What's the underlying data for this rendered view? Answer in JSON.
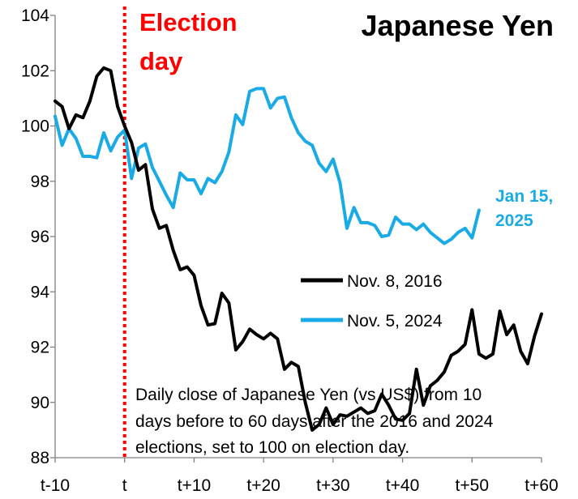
{
  "chart_data": {
    "type": "line",
    "title": "Japanese Yen",
    "event_label_line1": "Election",
    "event_label_line2": "day",
    "event_x": 0,
    "annotation": {
      "lines": [
        "Daily close of Japanese Yen (vs US$) from 10",
        "days before to 60 days after the 2016 and 2024",
        "elections, set to 100 on election day."
      ]
    },
    "end_label": {
      "line1": "Jan 15,",
      "line2": "2025"
    },
    "xlim": [
      -10,
      60
    ],
    "ylim": [
      88,
      104
    ],
    "x_ticks": [
      -10,
      0,
      10,
      20,
      30,
      40,
      50,
      60
    ],
    "x_tick_labels": [
      "t-10",
      "t",
      "t+10",
      "t+20",
      "t+30",
      "t+40",
      "t+50",
      "t+60"
    ],
    "y_ticks": [
      88,
      90,
      92,
      94,
      96,
      98,
      100,
      102,
      104
    ],
    "y_tick_labels": [
      "88",
      "90",
      "92",
      "94",
      "96",
      "98",
      "100",
      "102",
      "104"
    ],
    "grid": false,
    "legend_position": "center-right",
    "colors": {
      "series_2016": "#000000",
      "series_2024": "#1aabe6",
      "event_line": "#ff0000"
    },
    "series": [
      {
        "name": "Nov. 8, 2016",
        "color": "#000000",
        "points": [
          [
            -10,
            100.9
          ],
          [
            -9,
            100.7
          ],
          [
            -8,
            99.9
          ],
          [
            -7,
            100.4
          ],
          [
            -6,
            100.3
          ],
          [
            -5,
            100.9
          ],
          [
            -4,
            101.8
          ],
          [
            -3,
            102.1
          ],
          [
            -2,
            102.0
          ],
          [
            -1,
            100.7
          ],
          [
            0,
            100.0
          ],
          [
            1,
            99.4
          ],
          [
            2,
            98.4
          ],
          [
            3,
            98.6
          ],
          [
            4,
            97.0
          ],
          [
            5,
            96.3
          ],
          [
            6,
            96.4
          ],
          [
            7,
            95.5
          ],
          [
            8,
            94.8
          ],
          [
            9,
            94.9
          ],
          [
            10,
            94.6
          ],
          [
            11,
            93.5
          ],
          [
            12,
            92.8
          ],
          [
            13,
            92.85
          ],
          [
            14,
            93.95
          ],
          [
            15,
            93.6
          ],
          [
            16,
            91.9
          ],
          [
            17,
            92.2
          ],
          [
            18,
            92.65
          ],
          [
            19,
            92.45
          ],
          [
            20,
            92.3
          ],
          [
            21,
            92.5
          ],
          [
            22,
            92.3
          ],
          [
            23,
            91.2
          ],
          [
            24,
            91.45
          ],
          [
            25,
            91.3
          ],
          [
            26,
            90.0
          ],
          [
            27,
            89.0
          ],
          [
            28,
            89.2
          ],
          [
            29,
            89.8
          ],
          [
            30,
            89.2
          ],
          [
            31,
            89.55
          ],
          [
            32,
            89.5
          ],
          [
            33,
            89.65
          ],
          [
            34,
            89.8
          ],
          [
            35,
            89.6
          ],
          [
            36,
            89.7
          ],
          [
            37,
            90.3
          ],
          [
            38,
            89.9
          ],
          [
            39,
            89.4
          ],
          [
            40,
            89.35
          ],
          [
            41,
            89.6
          ],
          [
            42,
            91.2
          ],
          [
            43,
            89.9
          ],
          [
            44,
            90.6
          ],
          [
            45,
            90.8
          ],
          [
            46,
            91.1
          ],
          [
            47,
            91.7
          ],
          [
            48,
            91.85
          ],
          [
            49,
            92.1
          ],
          [
            50,
            93.35
          ],
          [
            51,
            91.75
          ],
          [
            52,
            91.6
          ],
          [
            53,
            91.75
          ],
          [
            54,
            93.3
          ],
          [
            55,
            92.45
          ],
          [
            56,
            92.8
          ],
          [
            57,
            91.85
          ],
          [
            58,
            91.4
          ],
          [
            59,
            92.4
          ],
          [
            60,
            93.2
          ]
        ]
      },
      {
        "name": "Nov. 5, 2024",
        "color": "#1aabe6",
        "points": [
          [
            -10,
            100.35
          ],
          [
            -9,
            99.3
          ],
          [
            -8,
            99.9
          ],
          [
            -7,
            99.55
          ],
          [
            -6,
            98.9
          ],
          [
            -5,
            98.9
          ],
          [
            -4,
            98.85
          ],
          [
            -3,
            99.75
          ],
          [
            -2,
            99.1
          ],
          [
            -1,
            99.6
          ],
          [
            0,
            99.85
          ],
          [
            1,
            98.1
          ],
          [
            2,
            99.2
          ],
          [
            3,
            99.35
          ],
          [
            4,
            98.5
          ],
          [
            5,
            98.0
          ],
          [
            6,
            97.5
          ],
          [
            7,
            97.05
          ],
          [
            8,
            98.3
          ],
          [
            9,
            98.05
          ],
          [
            10,
            98.05
          ],
          [
            11,
            97.55
          ],
          [
            12,
            98.1
          ],
          [
            13,
            97.95
          ],
          [
            14,
            98.35
          ],
          [
            15,
            99.05
          ],
          [
            16,
            100.4
          ],
          [
            17,
            100.05
          ],
          [
            18,
            101.25
          ],
          [
            19,
            101.35
          ],
          [
            20,
            101.35
          ],
          [
            21,
            100.65
          ],
          [
            22,
            101.0
          ],
          [
            23,
            101.05
          ],
          [
            24,
            100.3
          ],
          [
            25,
            99.75
          ],
          [
            26,
            99.45
          ],
          [
            27,
            99.3
          ],
          [
            28,
            98.65
          ],
          [
            29,
            98.35
          ],
          [
            30,
            98.8
          ],
          [
            31,
            97.95
          ],
          [
            32,
            96.3
          ],
          [
            33,
            97.05
          ],
          [
            34,
            96.5
          ],
          [
            35,
            96.5
          ],
          [
            36,
            96.4
          ],
          [
            37,
            96.0
          ],
          [
            38,
            96.05
          ],
          [
            39,
            96.7
          ],
          [
            40,
            96.45
          ],
          [
            41,
            96.45
          ],
          [
            42,
            96.25
          ],
          [
            43,
            96.45
          ],
          [
            44,
            96.15
          ],
          [
            45,
            95.95
          ],
          [
            46,
            95.75
          ],
          [
            47,
            95.9
          ],
          [
            48,
            96.15
          ],
          [
            49,
            96.3
          ],
          [
            50,
            95.95
          ],
          [
            51,
            96.95
          ]
        ]
      }
    ]
  }
}
